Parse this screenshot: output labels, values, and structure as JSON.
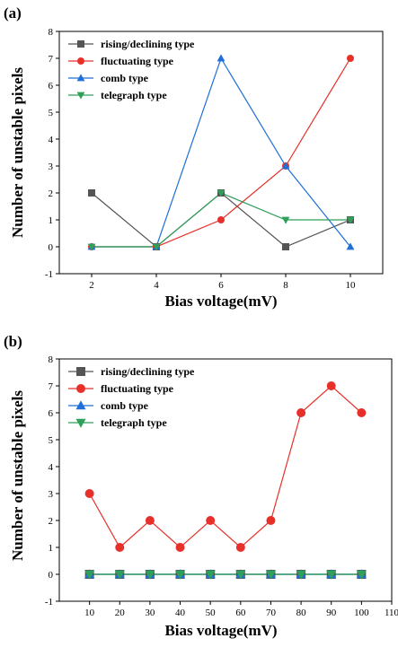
{
  "chart_data": [
    {
      "type": "line",
      "panel_label": "(a)",
      "xlabel": "Bias voltage(mV)",
      "ylabel": "Number of unstable pixels",
      "x": [
        2,
        4,
        6,
        8,
        10
      ],
      "xticks": [
        2,
        4,
        6,
        8,
        10
      ],
      "yticks": [
        -1,
        0,
        1,
        2,
        3,
        4,
        5,
        6,
        7,
        8
      ],
      "xlim": [
        1,
        11
      ],
      "ylim": [
        -1,
        8
      ],
      "legend_position": "top-left",
      "grid": false,
      "series": [
        {
          "name": "rising/declining type",
          "color": "#555555",
          "marker": "square",
          "values": [
            2,
            0,
            2,
            0,
            1
          ]
        },
        {
          "name": "fluctuating type",
          "color": "#e8302a",
          "marker": "circle",
          "values": [
            0,
            0,
            1,
            3,
            7
          ]
        },
        {
          "name": "comb type",
          "color": "#1f6fd6",
          "marker": "triangle-up",
          "values": [
            0,
            0,
            7,
            3,
            0
          ]
        },
        {
          "name": "telegraph type",
          "color": "#2ea05a",
          "marker": "triangle-down",
          "values": [
            0,
            0,
            2,
            1,
            1
          ]
        }
      ]
    },
    {
      "type": "line",
      "panel_label": "(b)",
      "xlabel": "Bias voltage(mV)",
      "ylabel": "Number of unstable pixels",
      "x": [
        10,
        20,
        30,
        40,
        50,
        60,
        70,
        80,
        90,
        100
      ],
      "xticks": [
        10,
        20,
        30,
        40,
        50,
        60,
        70,
        80,
        90,
        100,
        110
      ],
      "yticks": [
        -1,
        0,
        1,
        2,
        3,
        4,
        5,
        6,
        7,
        8
      ],
      "xlim": [
        0,
        110
      ],
      "ylim": [
        -1,
        8
      ],
      "legend_position": "top-left",
      "grid": false,
      "series": [
        {
          "name": "rising/declining type",
          "color": "#555555",
          "marker": "square",
          "values": [
            0,
            0,
            0,
            0,
            0,
            0,
            0,
            0,
            0,
            0
          ]
        },
        {
          "name": "fluctuating type",
          "color": "#e8302a",
          "marker": "circle",
          "values": [
            3,
            1,
            2,
            1,
            2,
            1,
            2,
            6,
            7,
            6
          ]
        },
        {
          "name": "comb type",
          "color": "#1f6fd6",
          "marker": "triangle-up",
          "values": [
            0,
            0,
            0,
            0,
            0,
            0,
            0,
            0,
            0,
            0
          ]
        },
        {
          "name": "telegraph type",
          "color": "#2ea05a",
          "marker": "triangle-down",
          "values": [
            0,
            0,
            0,
            0,
            0,
            0,
            0,
            0,
            0,
            0
          ]
        }
      ]
    }
  ]
}
